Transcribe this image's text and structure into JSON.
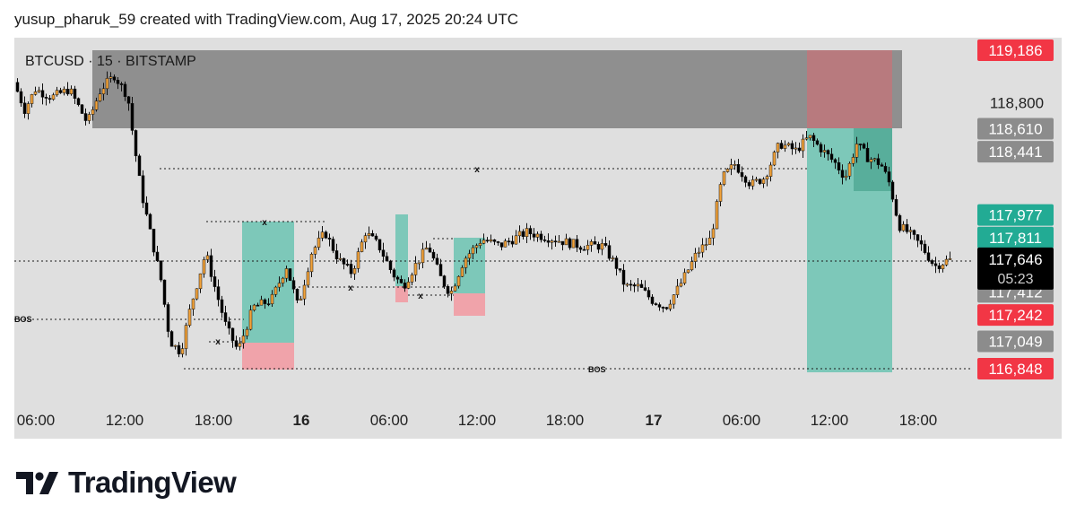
{
  "header": {
    "attribution": "yusup_pharuk_59 created with TradingView.com, Aug 17, 2025 20:24 UTC"
  },
  "brand": {
    "name": "TradingView",
    "logo_icon": "tradingview-logo-icon"
  },
  "chart_data": {
    "type": "candlestick",
    "symbol_label": "BTCUSD · 15 · BITSTAMP",
    "x_ticks": [
      {
        "label": "06:00",
        "bold": false
      },
      {
        "label": "12:00",
        "bold": false
      },
      {
        "label": "18:00",
        "bold": false
      },
      {
        "label": "16",
        "bold": true
      },
      {
        "label": "06:00",
        "bold": false
      },
      {
        "label": "12:00",
        "bold": false
      },
      {
        "label": "18:00",
        "bold": false
      },
      {
        "label": "17",
        "bold": true
      },
      {
        "label": "06:00",
        "bold": false
      },
      {
        "label": "12:00",
        "bold": false
      },
      {
        "label": "18:00",
        "bold": false
      }
    ],
    "price_axis": {
      "ticks": [
        {
          "label": "118,800",
          "value": 118800
        }
      ],
      "badges": [
        {
          "label": "119,186",
          "value": 119186,
          "bg": "#f23645"
        },
        {
          "label": "118,610",
          "value": 118610,
          "bg": "#8c8c8c"
        },
        {
          "label": "118,441",
          "value": 118441,
          "bg": "#8c8c8c"
        },
        {
          "label": "117,977",
          "value": 117977,
          "bg": "#22ab94"
        },
        {
          "label": "117,811",
          "value": 117811,
          "bg": "#22ab94"
        },
        {
          "label": "117,412",
          "value": 117412,
          "bg": "#8c8c8c"
        },
        {
          "label": "117,242",
          "value": 117242,
          "bg": "#f23645"
        },
        {
          "label": "117,049",
          "value": 117049,
          "bg": "#8c8c8c"
        },
        {
          "label": "116,848",
          "value": 116848,
          "bg": "#f23645"
        }
      ],
      "last_price": {
        "label": "117,646",
        "countdown": "05:23",
        "value": 117646,
        "bg": "#000000"
      }
    },
    "annotations": [
      {
        "text": "BOS",
        "kind": "break-of-structure"
      },
      {
        "text": "BOS",
        "kind": "break-of-structure"
      },
      {
        "text": "x",
        "kind": "marker"
      }
    ],
    "colors": {
      "candle_up": "#f2a33a",
      "candle_down": "#000000",
      "supply_zone": "#8f8f8f",
      "stop_zone": "#f0a3aa",
      "target_zone": "#6cc4b3",
      "background": "#dfdfdf"
    }
  }
}
